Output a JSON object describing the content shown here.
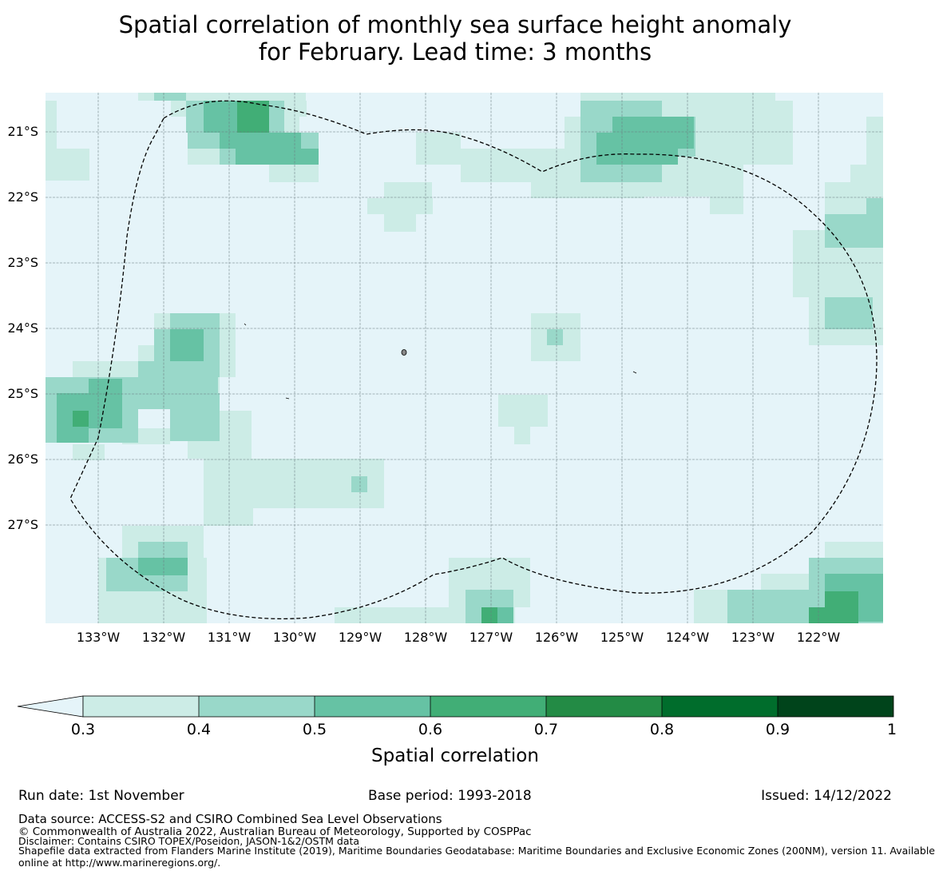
{
  "title": {
    "line1": "Spatial correlation of monthly sea surface height anomaly",
    "line2": "for February. Lead time: 3 months"
  },
  "map": {
    "latitude_labels": [
      "21°S",
      "22°S",
      "23°S",
      "24°S",
      "25°S",
      "26°S",
      "27°S"
    ],
    "longitude_labels": [
      "133°W",
      "132°W",
      "131°W",
      "130°W",
      "129°W",
      "128°W",
      "127°W",
      "126°W",
      "125°W",
      "124°W",
      "123°W",
      "122°W"
    ],
    "background_color": "#e5f4f9",
    "boundary_style": "dashed black line (EEZ boundary)"
  },
  "colorbar": {
    "label": "Spatial correlation",
    "ticks": [
      "0.3",
      "0.4",
      "0.5",
      "0.6",
      "0.7",
      "0.8",
      "0.9",
      "1"
    ],
    "colors": [
      "#ccece6",
      "#99d8c9",
      "#66c2a4",
      "#41ae76",
      "#238b45",
      "#006d2c",
      "#00441b"
    ],
    "below_min_color": "#e5f4f9"
  },
  "footer": {
    "run_date": "Run date: 1st November",
    "base_period": "Base period: 1993-2018",
    "issued": "Issued: 14/12/2022",
    "data_source": "Data source: ACCESS-S2 and CSIRO Combined Sea Level Observations",
    "copyright": "© Commonwealth of Australia 2022, Australian Bureau of Meteorology, Supported by COSPPac",
    "disclaimer": "Disclaimer: Contains CSIRO TOPEX/Poseidon, JASON-1&2/OSTM data",
    "shapefile_line1": "Shapefile data extracted from Flanders Marine Institute (2019), Maritime Boundaries Geodatabase: Maritime Boundaries and Exclusive Economic Zones (200NM), version 11. Available",
    "shapefile_line2": "online at http://www.marineregions.org/."
  }
}
